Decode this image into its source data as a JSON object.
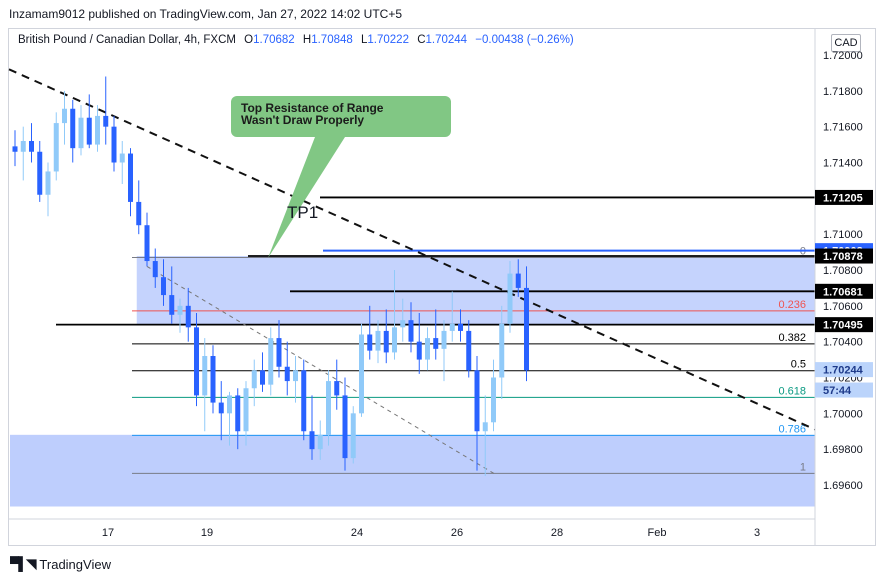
{
  "header": {
    "publisher": "Inzamam9012 published on TradingView.com, Jan 27, 2022 14:02 UTC+5"
  },
  "symbol": {
    "name": "British Pound / Canadian Dollar, 4h, FXCM",
    "o_label": "O",
    "o": "1.70682",
    "h_label": "H",
    "h": "1.70848",
    "l_label": "L",
    "l": "1.70222",
    "c_label": "C",
    "c": "1.70244",
    "change": "−0.00438 (−0.26%)"
  },
  "currency": "CAD",
  "annotation": {
    "callout_line1": "Top Resistance of Range",
    "callout_line2": "Wasn't Draw Properly",
    "tp_label": "TP1"
  },
  "footer": {
    "brand": "TradingView",
    "logo_icon": "tradingview-logo-icon"
  },
  "colors": {
    "candle_blue": "#2962ff",
    "candle_light": "#90caf9",
    "range_fill": "#bbcbfd",
    "callout_green": "#81c784",
    "fib_red": "#ef5350",
    "fib_green": "#089981",
    "fib_blue": "#2196f3"
  },
  "chart_data": {
    "type": "candlestick",
    "ylim": [
      1.695,
      1.721
    ],
    "y_ticks": [
      "1.72000",
      "1.71800",
      "1.71600",
      "1.71400",
      "1.71200",
      "1.71000",
      "1.70800",
      "1.70600",
      "1.70400",
      "1.70200",
      "1.70000",
      "1.69800",
      "1.69600"
    ],
    "x_ticks": [
      "17",
      "19",
      "24",
      "26",
      "28",
      "Feb",
      "3"
    ],
    "price_labels": [
      {
        "text": "1.71205",
        "value": 1.71205,
        "style": "black"
      },
      {
        "text": "1.70908",
        "value": 1.70908,
        "style": "blue"
      },
      {
        "text": "1.70878",
        "value": 1.70878,
        "style": "black"
      },
      {
        "text": "1.70681",
        "value": 1.70681,
        "style": "black"
      },
      {
        "text": "1.70495",
        "value": 1.70495,
        "style": "black"
      },
      {
        "text": "1.70244",
        "value": 1.70244,
        "style": "current"
      },
      {
        "text": "57:44",
        "value": 1.7013,
        "style": "current-sub"
      }
    ],
    "horizontal_levels": [
      {
        "value": 1.71205,
        "color": "#000000"
      },
      {
        "value": 1.70908,
        "color": "#2962ff"
      },
      {
        "value": 1.70878,
        "color": "#000000"
      },
      {
        "value": 1.70681,
        "color": "#000000"
      },
      {
        "value": 1.70495,
        "color": "#000000"
      }
    ],
    "fib_levels": [
      {
        "ratio": "0",
        "value": 1.7087,
        "color": "#787b86"
      },
      {
        "ratio": "0.236",
        "value": 1.70572,
        "color": "#ef5350"
      },
      {
        "ratio": "0.382",
        "value": 1.70388,
        "color": "#000000"
      },
      {
        "ratio": "0.5",
        "value": 1.70238,
        "color": "#000000"
      },
      {
        "ratio": "0.618",
        "value": 1.70089,
        "color": "#089981"
      },
      {
        "ratio": "0.786",
        "value": 1.69877,
        "color": "#2196f3"
      },
      {
        "ratio": "1",
        "value": 1.69665,
        "color": "#787b86"
      }
    ],
    "candles": [
      {
        "o": 1.7149,
        "h": 1.7158,
        "l": 1.7138,
        "c": 1.7146
      },
      {
        "o": 1.7146,
        "h": 1.716,
        "l": 1.713,
        "c": 1.7152
      },
      {
        "o": 1.7152,
        "h": 1.7162,
        "l": 1.714,
        "c": 1.7146
      },
      {
        "o": 1.7146,
        "h": 1.7152,
        "l": 1.7118,
        "c": 1.7122
      },
      {
        "o": 1.7122,
        "h": 1.714,
        "l": 1.711,
        "c": 1.7135
      },
      {
        "o": 1.7135,
        "h": 1.7168,
        "l": 1.713,
        "c": 1.7162
      },
      {
        "o": 1.7162,
        "h": 1.718,
        "l": 1.715,
        "c": 1.717
      },
      {
        "o": 1.717,
        "h": 1.7175,
        "l": 1.714,
        "c": 1.7148
      },
      {
        "o": 1.7148,
        "h": 1.7172,
        "l": 1.7144,
        "c": 1.7165
      },
      {
        "o": 1.7165,
        "h": 1.7178,
        "l": 1.7148,
        "c": 1.715
      },
      {
        "o": 1.715,
        "h": 1.7172,
        "l": 1.7146,
        "c": 1.7166
      },
      {
        "o": 1.7166,
        "h": 1.7188,
        "l": 1.715,
        "c": 1.716
      },
      {
        "o": 1.716,
        "h": 1.7166,
        "l": 1.7135,
        "c": 1.714
      },
      {
        "o": 1.714,
        "h": 1.7152,
        "l": 1.7128,
        "c": 1.7145
      },
      {
        "o": 1.7145,
        "h": 1.7148,
        "l": 1.711,
        "c": 1.7118
      },
      {
        "o": 1.7118,
        "h": 1.713,
        "l": 1.71,
        "c": 1.7105
      },
      {
        "o": 1.7105,
        "h": 1.7112,
        "l": 1.7082,
        "c": 1.7085
      },
      {
        "o": 1.7085,
        "h": 1.7092,
        "l": 1.707,
        "c": 1.7076
      },
      {
        "o": 1.7076,
        "h": 1.7086,
        "l": 1.706,
        "c": 1.7066
      },
      {
        "o": 1.7066,
        "h": 1.7082,
        "l": 1.705,
        "c": 1.7055
      },
      {
        "o": 1.7055,
        "h": 1.7064,
        "l": 1.7045,
        "c": 1.706
      },
      {
        "o": 1.706,
        "h": 1.707,
        "l": 1.704,
        "c": 1.7048
      },
      {
        "o": 1.7048,
        "h": 1.7056,
        "l": 1.7004,
        "c": 1.701
      },
      {
        "o": 1.701,
        "h": 1.7042,
        "l": 1.699,
        "c": 1.7032
      },
      {
        "o": 1.7032,
        "h": 1.7038,
        "l": 1.7,
        "c": 1.7006
      },
      {
        "o": 1.7006,
        "h": 1.7018,
        "l": 1.6985,
        "c": 1.7
      },
      {
        "o": 1.7,
        "h": 1.7012,
        "l": 1.6982,
        "c": 1.701
      },
      {
        "o": 1.701,
        "h": 1.7014,
        "l": 1.698,
        "c": 1.699
      },
      {
        "o": 1.699,
        "h": 1.7018,
        "l": 1.6982,
        "c": 1.7014
      },
      {
        "o": 1.7014,
        "h": 1.703,
        "l": 1.7004,
        "c": 1.7024
      },
      {
        "o": 1.7024,
        "h": 1.7034,
        "l": 1.7012,
        "c": 1.7016
      },
      {
        "o": 1.7016,
        "h": 1.7048,
        "l": 1.701,
        "c": 1.7042
      },
      {
        "o": 1.7042,
        "h": 1.7052,
        "l": 1.702,
        "c": 1.7026
      },
      {
        "o": 1.7026,
        "h": 1.704,
        "l": 1.701,
        "c": 1.7018
      },
      {
        "o": 1.7018,
        "h": 1.7032,
        "l": 1.7006,
        "c": 1.7024
      },
      {
        "o": 1.7024,
        "h": 1.703,
        "l": 1.6985,
        "c": 1.699
      },
      {
        "o": 1.699,
        "h": 1.701,
        "l": 1.6974,
        "c": 1.698
      },
      {
        "o": 1.698,
        "h": 1.6996,
        "l": 1.6974,
        "c": 1.6988
      },
      {
        "o": 1.6988,
        "h": 1.7024,
        "l": 1.6982,
        "c": 1.7018
      },
      {
        "o": 1.7018,
        "h": 1.703,
        "l": 1.7002,
        "c": 1.701
      },
      {
        "o": 1.701,
        "h": 1.702,
        "l": 1.6968,
        "c": 1.6975
      },
      {
        "o": 1.6975,
        "h": 1.7004,
        "l": 1.6972,
        "c": 1.7
      },
      {
        "o": 1.7,
        "h": 1.705,
        "l": 1.6998,
        "c": 1.7044
      },
      {
        "o": 1.7044,
        "h": 1.706,
        "l": 1.703,
        "c": 1.7035
      },
      {
        "o": 1.7035,
        "h": 1.7052,
        "l": 1.7028,
        "c": 1.7046
      },
      {
        "o": 1.7046,
        "h": 1.7058,
        "l": 1.7028,
        "c": 1.7034
      },
      {
        "o": 1.7034,
        "h": 1.708,
        "l": 1.703,
        "c": 1.7048
      },
      {
        "o": 1.7048,
        "h": 1.7064,
        "l": 1.704,
        "c": 1.7052
      },
      {
        "o": 1.7052,
        "h": 1.7062,
        "l": 1.7034,
        "c": 1.704
      },
      {
        "o": 1.704,
        "h": 1.7056,
        "l": 1.7022,
        "c": 1.703
      },
      {
        "o": 1.703,
        "h": 1.7048,
        "l": 1.7024,
        "c": 1.7042
      },
      {
        "o": 1.7042,
        "h": 1.7058,
        "l": 1.703,
        "c": 1.7036
      },
      {
        "o": 1.7036,
        "h": 1.7052,
        "l": 1.7018,
        "c": 1.7046
      },
      {
        "o": 1.7046,
        "h": 1.7068,
        "l": 1.704,
        "c": 1.705
      },
      {
        "o": 1.705,
        "h": 1.7058,
        "l": 1.704,
        "c": 1.7046
      },
      {
        "o": 1.7046,
        "h": 1.7052,
        "l": 1.702,
        "c": 1.7024
      },
      {
        "o": 1.7024,
        "h": 1.7032,
        "l": 1.6968,
        "c": 1.699
      },
      {
        "o": 1.699,
        "h": 1.701,
        "l": 1.6965,
        "c": 1.6995
      },
      {
        "o": 1.6995,
        "h": 1.703,
        "l": 1.699,
        "c": 1.702
      },
      {
        "o": 1.702,
        "h": 1.706,
        "l": 1.7008,
        "c": 1.705
      },
      {
        "o": 1.705,
        "h": 1.7085,
        "l": 1.7045,
        "c": 1.7078
      },
      {
        "o": 1.7078,
        "h": 1.7086,
        "l": 1.7065,
        "c": 1.707
      },
      {
        "o": 1.707,
        "h": 1.7082,
        "l": 1.7018,
        "c": 1.7024
      }
    ],
    "range_boxes": [
      {
        "top": 1.70878,
        "bottom": 1.70495,
        "start_index": 15,
        "end_index": "right-edge"
      },
      {
        "top": 1.6988,
        "bottom": 1.6948,
        "start_index": 0,
        "end_index": "right-edge"
      }
    ],
    "trendlines": [
      {
        "from": {
          "index": 0,
          "value": 1.7192
        },
        "to": {
          "index": "right-edge",
          "value": 1.6991
        },
        "style": "dashed-thick"
      },
      {
        "from": {
          "index": 16,
          "value": 1.7082
        },
        "to": {
          "index": 57,
          "value": 1.6966
        },
        "style": "dashed-thin"
      }
    ]
  }
}
